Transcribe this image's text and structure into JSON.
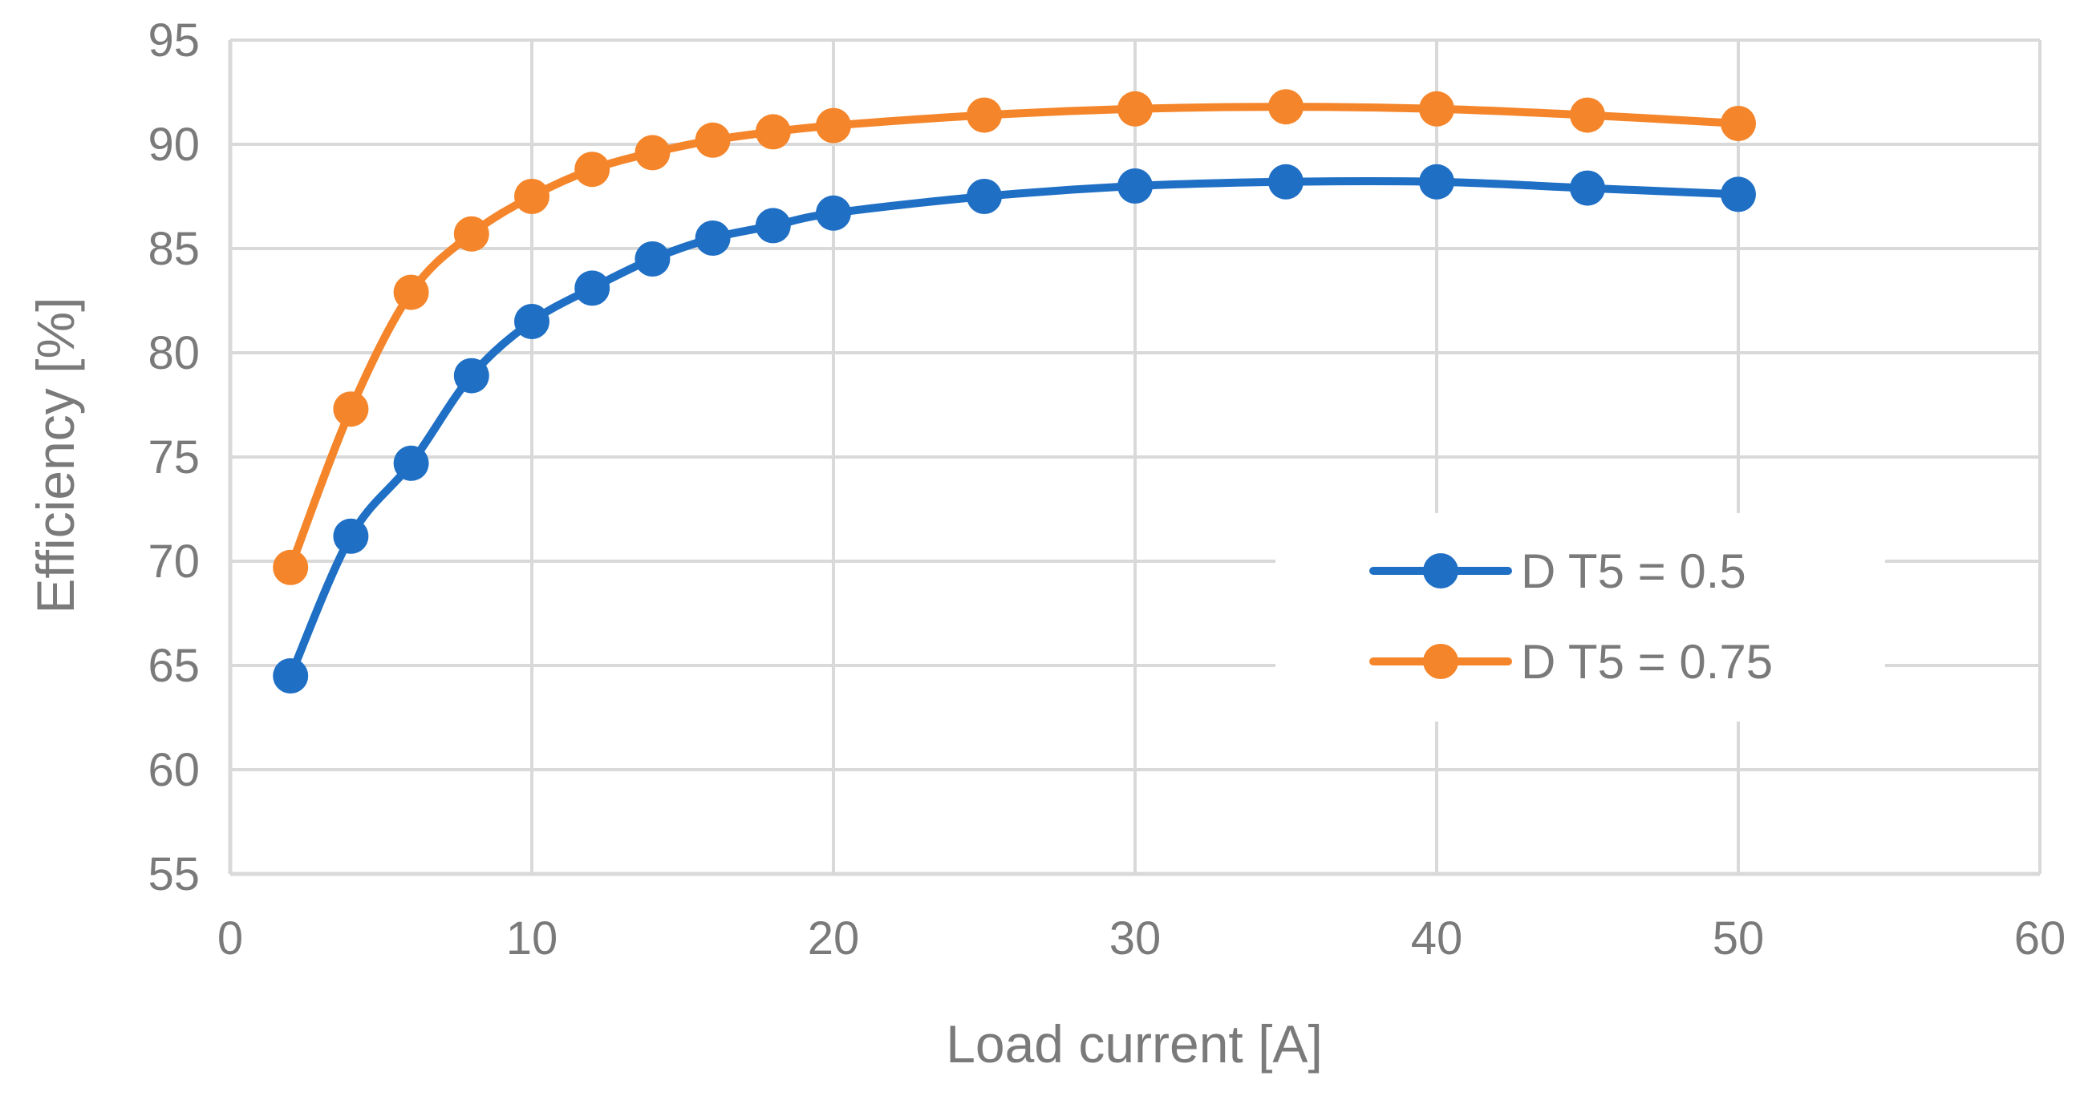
{
  "chart_data": {
    "type": "line",
    "title": "",
    "xlabel": "Load current [A]",
    "ylabel": "Efficiency [%]",
    "xlim": [
      0,
      60
    ],
    "ylim": [
      55,
      95
    ],
    "x_ticks": [
      0,
      10,
      20,
      30,
      40,
      50,
      60
    ],
    "y_ticks": [
      55,
      60,
      65,
      70,
      75,
      80,
      85,
      90,
      95
    ],
    "grid": true,
    "legend_position": "right",
    "x": [
      2,
      4,
      6,
      8,
      10,
      12,
      14,
      16,
      18,
      20,
      25,
      30,
      35,
      40,
      45,
      50
    ],
    "series": [
      {
        "name": "D T5 = 0.5",
        "color": "#1f6fc5",
        "values": [
          64.5,
          71.2,
          74.7,
          78.9,
          81.5,
          83.1,
          84.5,
          85.5,
          86.1,
          86.7,
          87.5,
          88.0,
          88.2,
          88.2,
          87.9,
          87.6
        ]
      },
      {
        "name": "D T5 = 0.75",
        "color": "#f5852a",
        "values": [
          69.7,
          77.3,
          82.9,
          85.7,
          87.5,
          88.8,
          89.6,
          90.2,
          90.6,
          90.9,
          91.4,
          91.7,
          91.8,
          91.7,
          91.4,
          91.0
        ]
      }
    ]
  }
}
